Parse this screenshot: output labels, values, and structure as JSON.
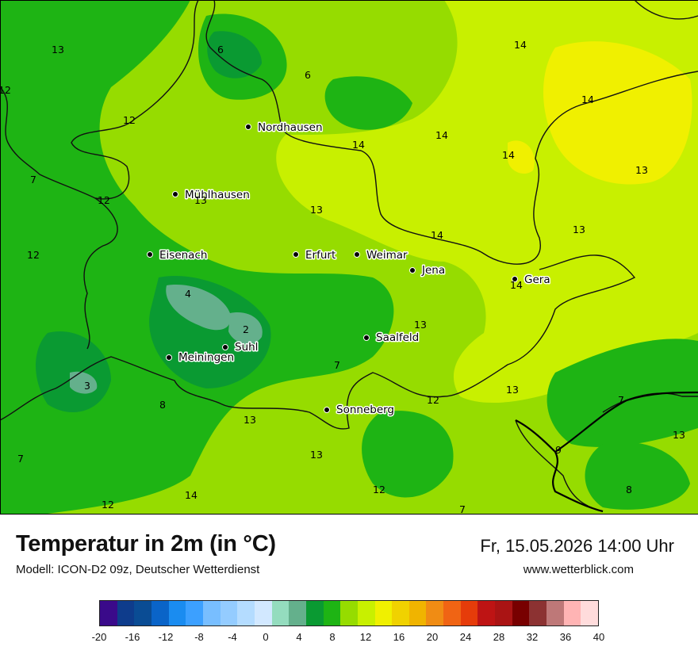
{
  "map": {
    "cities": [
      {
        "name": "Nordhausen"
      },
      {
        "name": "Mühlhausen"
      },
      {
        "name": "Eisenach"
      },
      {
        "name": "Erfurt"
      },
      {
        "name": "Weimar"
      },
      {
        "name": "Jena"
      },
      {
        "name": "Gera"
      },
      {
        "name": "Saalfeld"
      },
      {
        "name": "Suhl"
      },
      {
        "name": "Meiningen"
      },
      {
        "name": "Sonneberg"
      }
    ],
    "temperature_labels": [
      "13",
      "6",
      "6",
      "12",
      "12",
      "7",
      "12",
      "12",
      "13",
      "4",
      "2",
      "3",
      "8",
      "7",
      "12",
      "13",
      "14",
      "14",
      "14",
      "14",
      "13",
      "14",
      "13",
      "14",
      "13",
      "13",
      "7",
      "12",
      "13",
      "7",
      "9",
      "13",
      "8",
      "7",
      "13",
      "12",
      "14"
    ]
  },
  "title": "Temperatur in 2m (in °C)",
  "model": "Modell: ICON-D2 09z, Deutscher Wetterdienst",
  "datetime": "Fr, 15.05.2026 14:00 Uhr",
  "website": "www.wetterblick.com",
  "legend": {
    "ticks": [
      "-20",
      "-16",
      "-12",
      "-8",
      "-4",
      "0",
      "4",
      "8",
      "12",
      "16",
      "20",
      "24",
      "28",
      "32",
      "36",
      "40"
    ],
    "colors": [
      "#3a0a8a",
      "#0e3c8c",
      "#0a4c94",
      "#0a64c8",
      "#1a8cf0",
      "#3ca0ff",
      "#78beff",
      "#94ccff",
      "#b4dcff",
      "#d2e8ff",
      "#94dcbe",
      "#64b08c",
      "#0a9a32",
      "#1eb414",
      "#96dc00",
      "#c8f000",
      "#f0f000",
      "#f0d200",
      "#f0b400",
      "#f08c14",
      "#f06414",
      "#e63c0a",
      "#be1414",
      "#aa1414",
      "#780000",
      "#8c3232",
      "#be7878",
      "#ffb4b4",
      "#ffdcdc"
    ]
  }
}
